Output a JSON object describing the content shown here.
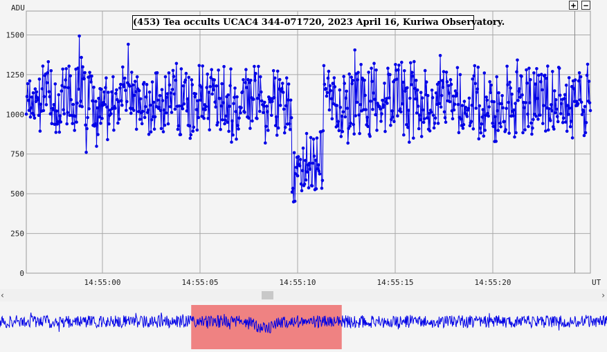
{
  "chart_data": {
    "type": "line",
    "title": "(453) Tea occults UCAC4 344-071720, 2023 April 16, Kuriwa Observatory.",
    "ylabel": "ADU",
    "xlabel": "UT",
    "ylim": [
      0,
      1650
    ],
    "yticks": [
      0,
      250,
      500,
      750,
      1000,
      1250,
      1500
    ],
    "xlim_seconds": [
      54956.1,
      54985.0
    ],
    "xticks": [
      {
        "t": 54960,
        "label": "14:55:00"
      },
      {
        "t": 54965,
        "label": "14:55:05"
      },
      {
        "t": 54970,
        "label": "14:55:10"
      },
      {
        "t": 54975,
        "label": "14:55:15"
      },
      {
        "t": 54980,
        "label": "14:55:20"
      }
    ],
    "marker_line_t": 54984.2,
    "series_color": "#0000e6",
    "grid": true,
    "series": [
      {
        "sample_count": 820,
        "values_baseline": 1085,
        "values_noise_amplitude": 210,
        "event": {
          "start_t": 54969.7,
          "end_t": 54971.3,
          "depth_value": 580
        }
      }
    ]
  },
  "overview": {
    "selection_fraction": [
      0.315,
      0.563
    ],
    "selection_color": "#ef8282",
    "series_color": "#0000e6"
  },
  "controls": {
    "zoom_in_label": "+",
    "zoom_out_label": "−",
    "scroll_left": "‹",
    "scroll_right": "›"
  }
}
